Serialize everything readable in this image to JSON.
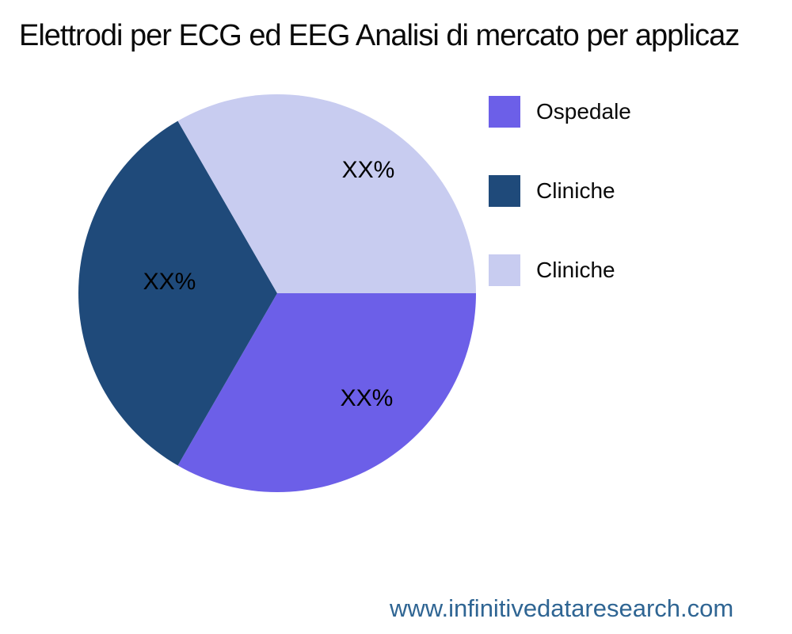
{
  "page": {
    "background": "#ffffff",
    "website": "www.infinitivedataresearch.com",
    "website_color": "#2F6593"
  },
  "chart_data": {
    "type": "pie",
    "title": "Elettrodi per ECG ed EEG Analisi di mercato per applicaz",
    "start_angle_deg": 0,
    "direction": "clockwise",
    "legend_position": "right",
    "labels_masked": true,
    "slices": [
      {
        "label": "Ospedale",
        "value": 33.33,
        "display_value": "XX%",
        "color": "#6C5FE8"
      },
      {
        "label": "Cliniche",
        "value": 33.33,
        "display_value": "XX%",
        "color": "#1F4A7A"
      },
      {
        "label": "Cliniche",
        "value": 33.33,
        "display_value": "XX%",
        "color": "#C8CCF0"
      }
    ]
  }
}
